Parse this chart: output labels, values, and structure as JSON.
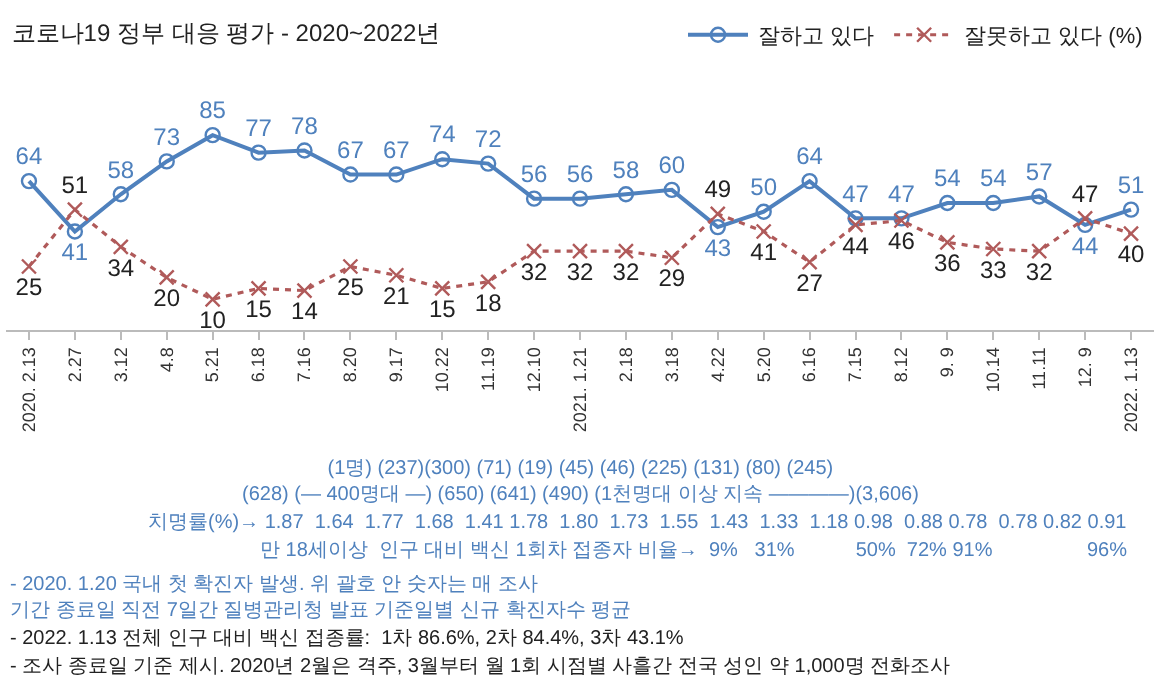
{
  "chart_data": {
    "type": "line",
    "title": "코로나19 정부 대응 평가 - 2020~2022년",
    "categories": [
      "2020. 2.13",
      "2.27",
      "3.12",
      "4.8",
      "5.21",
      "6.18",
      "7.16",
      "8.20",
      "9.17",
      "10.22",
      "11.19",
      "12.10",
      "2021. 1.21",
      "2.18",
      "3.18",
      "4.22",
      "5.20",
      "6.16",
      "7.15",
      "8.12",
      "9. 9",
      "10.14",
      "11.11",
      "12. 9",
      "2022. 1.13"
    ],
    "series": [
      {
        "name": "잘하고 있다",
        "color": "#4f81bd",
        "marker": "circle",
        "line_style": "solid",
        "values": [
          64,
          41,
          58,
          73,
          85,
          77,
          78,
          67,
          67,
          74,
          72,
          56,
          56,
          58,
          60,
          43,
          50,
          64,
          47,
          47,
          54,
          54,
          57,
          44,
          51
        ]
      },
      {
        "name": "잘못하고 있다 (%)",
        "color": "#b05a5a",
        "marker": "cross",
        "line_style": "dotted",
        "values": [
          25,
          51,
          34,
          20,
          10,
          15,
          14,
          25,
          21,
          15,
          18,
          32,
          32,
          32,
          29,
          49,
          41,
          27,
          44,
          46,
          36,
          33,
          32,
          47,
          40
        ]
      }
    ],
    "data_labels": true,
    "legend": "top right",
    "annotations": [
      "(1명) (237)(300) (71) (19) (45) (46) (225) (131) (80) (245) (628) (— 400명대 —) (650) (641) (490) (1천명대 이상 지속 ————)(3,606)",
      "치명률(%)→ 1.87  1.64  1.77  1.68  1.41 1.78  1.80  1.73  1.55  1.43  1.33  1.18 0.98  0.88 0.78  0.78 0.82 0.91",
      "만 18세이상  인구 대비 백신 1회차 접종자 비율→  9%   31%           50%  72% 91%                 96%",
      "- 2020. 1.20 국내 첫 확진자 발생. 위 괄호 안 숫자는 매 조사 기간 종료일 직전 7일간 질병관리청 발표 기준일별 신규 확진자수 평균",
      "- 2022. 1.13 전체 인구 대비 백신 접종률:  1차 86.6%, 2차 84.4%, 3차 43.1%",
      "- 조사 종료일 기준 제시. 2020년 2월은 격주, 3월부터 월 1회 시점별 사흘간 전국 성인 약 1,000명 전화조사"
    ]
  }
}
